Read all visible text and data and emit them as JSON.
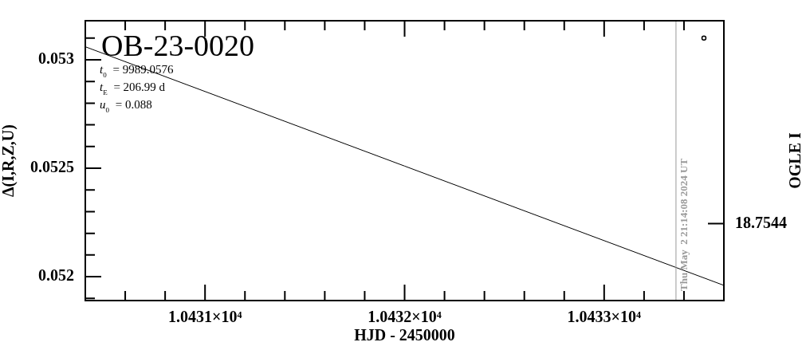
{
  "chart_data": {
    "type": "line",
    "xlabel": "HJD - 2450000",
    "ylabel": "Δ(I,R,Z,U)",
    "y2label": "OGLE I",
    "annotations": [
      "OB-23-0020",
      "t$_{0}$ = 9989.0576",
      "t$_{E}$ = 206.99 d",
      "u$_{0}$ = 0.088",
      "18.7544",
      "Thu May  2 21:14:08 2024 UT"
    ],
    "xlim": [
      10430.4,
      10433.6
    ],
    "xticks": [
      {
        "value": 10430.6,
        "label": null
      },
      {
        "value": 10430.8,
        "label": null
      },
      {
        "value": 10431,
        "label": "1.0431×10⁴"
      },
      {
        "value": 10431.2,
        "label": null
      },
      {
        "value": 10431.4,
        "label": null
      },
      {
        "value": 10431.6,
        "label": null
      },
      {
        "value": 10431.8,
        "label": null
      },
      {
        "value": 10432,
        "label": "1.0432×10⁴"
      },
      {
        "value": 10432.2,
        "label": null
      },
      {
        "value": 10432.4,
        "label": null
      },
      {
        "value": 10432.6,
        "label": null
      },
      {
        "value": 10432.8,
        "label": null
      },
      {
        "value": 10433,
        "label": "1.0433×10⁴"
      },
      {
        "value": 10433.2,
        "label": null
      },
      {
        "value": 10433.4,
        "label": null
      }
    ],
    "ylim": [
      0.05189,
      0.05318
    ],
    "yticks": [
      {
        "value": 0.0519,
        "label": null
      },
      0.052,
      {
        "value": 0.0521,
        "label": null
      },
      {
        "value": 0.0522,
        "label": null
      },
      {
        "value": 0.0523,
        "label": null
      },
      {
        "value": 0.0524,
        "label": null
      },
      0.0525,
      {
        "value": 0.0526,
        "label": null
      },
      {
        "value": 0.0527,
        "label": null
      },
      {
        "value": 0.0528,
        "label": null
      },
      {
        "value": 0.0529,
        "label": null
      },
      0.053,
      {
        "value": 0.0531,
        "label": null
      }
    ],
    "ref_lines": [
      {
        "axis": "x",
        "value": 10433.36,
        "color": "#999999"
      }
    ],
    "legend": false,
    "grid": false,
    "series": [
      {
        "color": "#000000",
        "marker": "none",
        "x": [
          10430.4,
          10432,
          10433.6
        ],
        "values": [
          0.05306,
          0.05251,
          0.05196
        ]
      },
      {
        "type": "scatter",
        "color": "#000000",
        "marker": "circle",
        "x": [
          10433.5
        ],
        "values": [
          0.0531
        ]
      }
    ]
  }
}
